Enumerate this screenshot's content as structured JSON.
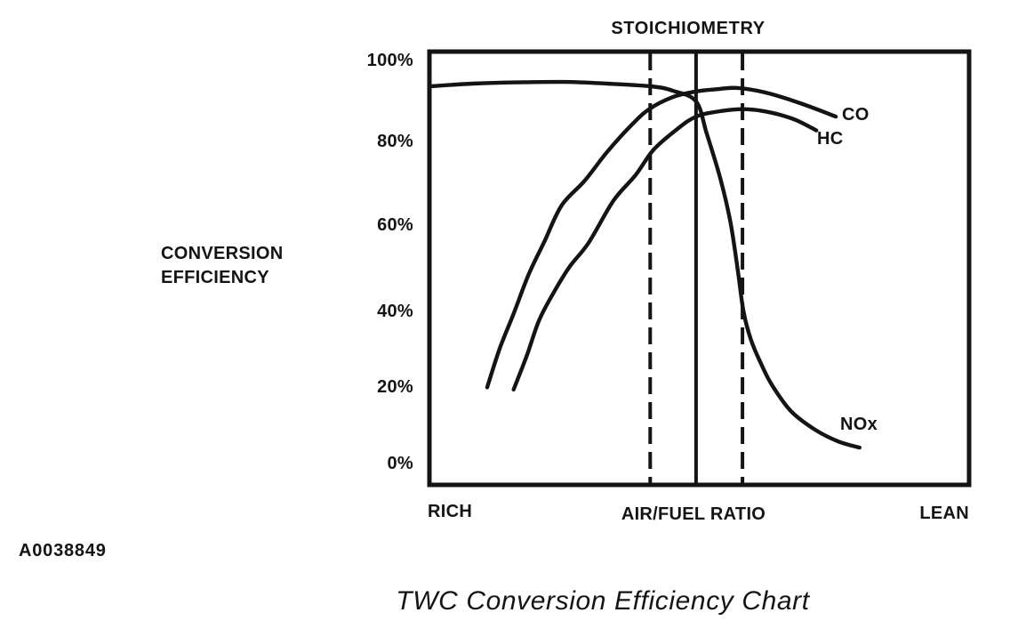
{
  "chart": {
    "top_label": "STOICHIOMETRY",
    "y_axis_title": {
      "line1": "CONVERSION",
      "line2": "EFFICIENCY"
    },
    "y_ticks": [
      "100%",
      "80%",
      "60%",
      "40%",
      "20%",
      "0%"
    ],
    "x_axis_labels": {
      "left": "RICH",
      "center": "AIR/FUEL RATIO",
      "right": "LEAN"
    },
    "curve_labels": {
      "co": "CO",
      "hc": "HC",
      "nox": "NOx"
    }
  },
  "figure": {
    "code": "A0038849",
    "caption": "TWC Conversion Efficiency Chart"
  },
  "colors": {
    "ink": "#141414",
    "background": "#ffffff"
  },
  "chart_data": {
    "type": "line",
    "title": "TWC Conversion Efficiency Chart",
    "annotation_top": "STOICHIOMETRY",
    "ylabel": "CONVERSION EFFICIENCY",
    "xlabel": "AIR/FUEL RATIO",
    "x_axis_note": "x in relative units, 0 = RICH end to 100 = LEAN end; no numeric scale printed",
    "ylim": [
      0,
      100
    ],
    "y_ticks_percent": [
      0,
      20,
      40,
      60,
      80,
      100
    ],
    "grid": false,
    "legend_position": "inline labels at right curve ends",
    "vertical_lines": {
      "stoichiometry_solid_x": 49.4,
      "dashed_window_x": [
        40.9,
        58.0
      ]
    },
    "series": [
      {
        "name": "NOx",
        "points": [
          [
            0,
            92
          ],
          [
            8,
            92.6
          ],
          [
            16,
            92.9
          ],
          [
            25,
            93
          ],
          [
            33,
            92.6
          ],
          [
            41,
            92
          ],
          [
            45,
            91
          ],
          [
            49.4,
            88.5
          ],
          [
            51.4,
            81
          ],
          [
            53.9,
            70.7
          ],
          [
            55.8,
            60.5
          ],
          [
            57.2,
            49
          ],
          [
            58.2,
            40
          ],
          [
            59.6,
            33.4
          ],
          [
            61.4,
            28.1
          ],
          [
            63.4,
            23.2
          ],
          [
            67,
            17
          ],
          [
            71.5,
            12.7
          ],
          [
            75.8,
            10
          ],
          [
            79.7,
            8.6
          ]
        ]
      },
      {
        "name": "CO",
        "points": [
          [
            10.7,
            22.5
          ],
          [
            13,
            31.4
          ],
          [
            15.6,
            39.5
          ],
          [
            18.4,
            48.6
          ],
          [
            21.2,
            55.9
          ],
          [
            24.5,
            64.5
          ],
          [
            28.7,
            70.1
          ],
          [
            32.9,
            76.8
          ],
          [
            37.4,
            83
          ],
          [
            40.7,
            86.7
          ],
          [
            45.1,
            89.5
          ],
          [
            49.4,
            90.8
          ],
          [
            53.9,
            91.4
          ],
          [
            57.2,
            91.6
          ],
          [
            62.1,
            90.6
          ],
          [
            68.7,
            88.1
          ],
          [
            75.3,
            85
          ]
        ]
      },
      {
        "name": "HC",
        "points": [
          [
            15.6,
            22
          ],
          [
            18,
            29.7
          ],
          [
            20.3,
            37.9
          ],
          [
            22.9,
            44.1
          ],
          [
            25.9,
            50.2
          ],
          [
            29.5,
            55.9
          ],
          [
            34.1,
            65.6
          ],
          [
            38.2,
            71.5
          ],
          [
            41.5,
            77.3
          ],
          [
            45.6,
            81.8
          ],
          [
            49.4,
            85
          ],
          [
            54.2,
            86.3
          ],
          [
            58.8,
            86.7
          ],
          [
            63.4,
            85.9
          ],
          [
            67.9,
            84.2
          ],
          [
            71.7,
            81.8
          ]
        ]
      }
    ]
  }
}
